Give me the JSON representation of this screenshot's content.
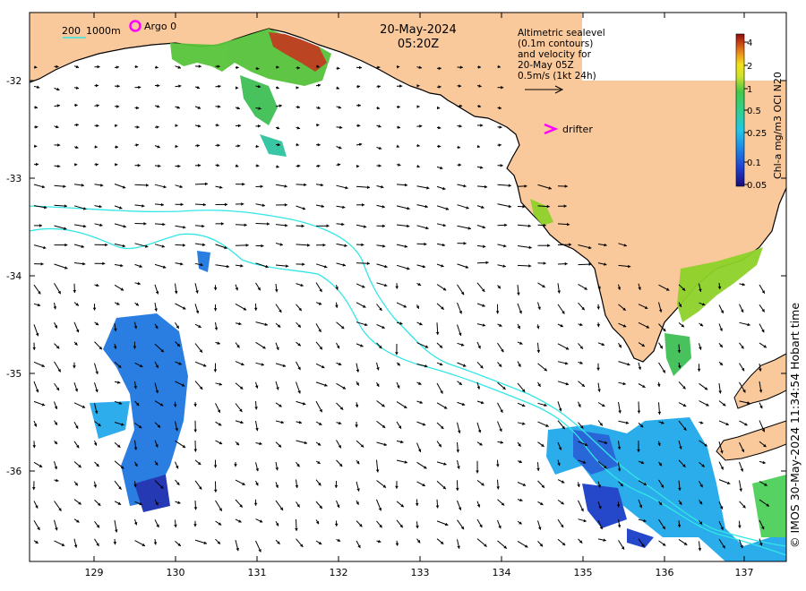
{
  "map": {
    "date_label": "20-May-2024",
    "time_label": "05:20Z",
    "scale_label_200": "200",
    "scale_label_1000": "1000m",
    "argo_label": "Argo 0",
    "drifter_label": "drifter",
    "legend_lines": [
      "Altimetric sealevel",
      "(0.1m contours)",
      "and velocity for",
      "20-May 05Z",
      "0.5m/s (1kt 24h)"
    ],
    "colorbar": {
      "title": "Chl-a mg/m3 OCI N20",
      "ticks": [
        "4",
        "2",
        "1",
        "0.5",
        "0.25",
        "0.1",
        "0.05"
      ]
    },
    "lon_ticks": [
      "129",
      "130",
      "131",
      "132",
      "133",
      "134",
      "135",
      "136",
      "137"
    ],
    "lat_ticks": [
      "-32",
      "-33",
      "-34",
      "-35",
      "-36"
    ],
    "copyright": "© IMOS 30-May-2024 11:34:54 Hobart time",
    "colors": {
      "land": "#f9c89b",
      "contour": "#33e6e6",
      "argo": "#ff00ff",
      "drifter": "#ff00ff",
      "vector": "#000000"
    }
  }
}
